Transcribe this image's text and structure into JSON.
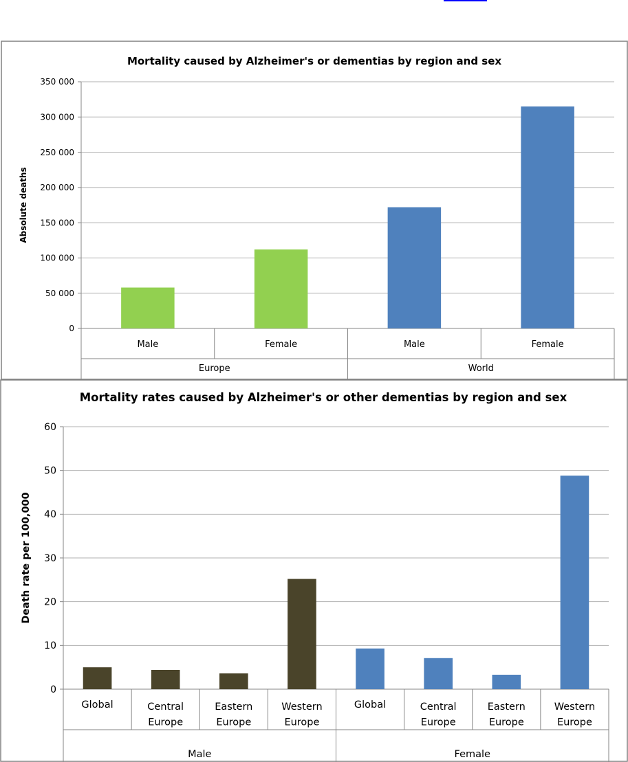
{
  "chart_data": [
    {
      "type": "bar",
      "title": "Mortality caused by Alzheimer's or dementias by region and sex",
      "ylabel": "Absolute deaths",
      "xlabel": "",
      "ylim": [
        0,
        350000
      ],
      "yticks": [
        0,
        50000,
        100000,
        150000,
        200000,
        250000,
        300000,
        350000
      ],
      "ytick_labels": [
        "0",
        "50 000",
        "100 000",
        "150 000",
        "200 000",
        "250 000",
        "300 000",
        "350 000"
      ],
      "grid": true,
      "groups": [
        {
          "name": "Europe",
          "color": "#92d050",
          "categories": [
            "Male",
            "Female"
          ],
          "values": [
            58000,
            112000
          ]
        },
        {
          "name": "World",
          "color": "#4f81bd",
          "categories": [
            "Male",
            "Female"
          ],
          "values": [
            172000,
            315000
          ]
        }
      ]
    },
    {
      "type": "bar",
      "title": "Mortality rates caused by Alzheimer's or other dementias by region and sex",
      "ylabel": "Death rate per 100,000",
      "xlabel": "",
      "ylim": [
        0,
        60
      ],
      "yticks": [
        0,
        10,
        20,
        30,
        40,
        50,
        60
      ],
      "ytick_labels": [
        "0",
        "10",
        "20",
        "30",
        "40",
        "50",
        "60"
      ],
      "grid": true,
      "groups": [
        {
          "name": "Male",
          "color": "#4a442a",
          "categories": [
            "Global",
            "Central Europe",
            "Eastern Europe",
            "Western Europe"
          ],
          "values": [
            5.0,
            4.4,
            3.6,
            25.2
          ]
        },
        {
          "name": "Female",
          "color": "#4f81bd",
          "categories": [
            "Global",
            "Central Europe",
            "Eastern Europe",
            "Western Europe"
          ],
          "values": [
            9.3,
            7.1,
            3.3,
            48.8
          ]
        }
      ]
    }
  ]
}
